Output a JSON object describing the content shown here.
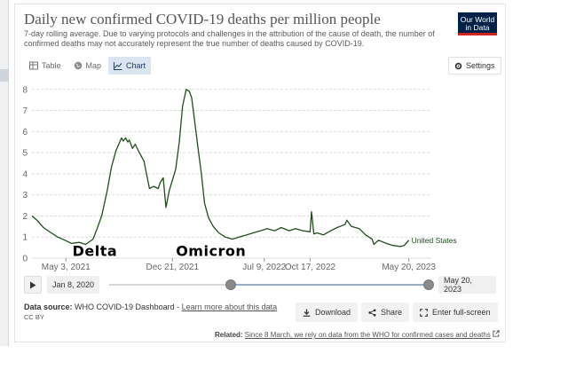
{
  "title": "Daily new confirmed COVID-19 deaths per million people",
  "subtitle": "7-day rolling average. Due to varying protocols and challenges in the attribution of the cause of death, the number of confirmed deaths may not accurately represent the true number of deaths caused by COVID-19.",
  "logo": {
    "line1": "Our World",
    "line2": "in Data"
  },
  "tabs": [
    {
      "label": "Table",
      "icon": "table-icon"
    },
    {
      "label": "Map",
      "icon": "globe-icon"
    },
    {
      "label": "Chart",
      "icon": "line-chart-icon",
      "active": true
    }
  ],
  "settings_label": "Settings",
  "chart_data": {
    "type": "line",
    "xlim": [
      "2021-02-18",
      "2023-07-08"
    ],
    "ylim": [
      0,
      8.2
    ],
    "yticks": [
      0,
      1,
      2,
      3,
      4,
      5,
      6,
      7,
      8
    ],
    "xticks": [
      {
        "date": "2021-05-03",
        "label": "May 3, 2021"
      },
      {
        "date": "2021-12-21",
        "label": "Dec 21, 2021"
      },
      {
        "date": "2022-07-09",
        "label": "Jul 9, 2022"
      },
      {
        "date": "2022-10-17",
        "label": "Oct 17, 2022"
      },
      {
        "date": "2023-05-20",
        "label": "May 20, 2023"
      }
    ],
    "grid": true,
    "annotations": [
      {
        "text": "Delta",
        "date": "2021-07-05",
        "y": 0.1
      },
      {
        "text": "Omicron",
        "date": "2022-03-15",
        "y": 0.1
      }
    ],
    "series": [
      {
        "name": "United States",
        "color": "#1f4e1a",
        "x": [
          "2021-02-18",
          "2021-03-01",
          "2021-03-15",
          "2021-04-01",
          "2021-04-15",
          "2021-05-01",
          "2021-05-15",
          "2021-06-01",
          "2021-06-15",
          "2021-07-01",
          "2021-07-10",
          "2021-07-20",
          "2021-08-01",
          "2021-08-10",
          "2021-08-20",
          "2021-09-01",
          "2021-09-05",
          "2021-09-10",
          "2021-09-15",
          "2021-09-18",
          "2021-09-25",
          "2021-10-01",
          "2021-10-10",
          "2021-10-20",
          "2021-11-01",
          "2021-11-10",
          "2021-11-20",
          "2021-11-25",
          "2021-12-01",
          "2021-12-07",
          "2021-12-14",
          "2021-12-21",
          "2021-12-28",
          "2022-01-05",
          "2022-01-12",
          "2022-01-20",
          "2022-01-27",
          "2022-02-01",
          "2022-02-08",
          "2022-02-15",
          "2022-02-22",
          "2022-03-01",
          "2022-03-10",
          "2022-03-20",
          "2022-04-01",
          "2022-04-15",
          "2022-05-01",
          "2022-05-15",
          "2022-06-01",
          "2022-06-15",
          "2022-07-01",
          "2022-07-15",
          "2022-08-01",
          "2022-08-15",
          "2022-09-01",
          "2022-09-15",
          "2022-10-01",
          "2022-10-17",
          "2022-10-20",
          "2022-10-25",
          "2022-11-01",
          "2022-11-15",
          "2022-12-01",
          "2022-12-15",
          "2023-01-01",
          "2023-01-05",
          "2023-01-15",
          "2023-02-01",
          "2023-02-15",
          "2023-03-01",
          "2023-03-05",
          "2023-03-15",
          "2023-04-01",
          "2023-04-15",
          "2023-05-01",
          "2023-05-10",
          "2023-05-20"
        ],
        "values": [
          2.0,
          1.8,
          1.45,
          1.2,
          1.0,
          0.85,
          0.7,
          0.75,
          0.65,
          0.9,
          1.4,
          2.0,
          3.2,
          4.3,
          5.1,
          5.7,
          5.55,
          5.7,
          5.5,
          5.6,
          5.2,
          5.4,
          5.0,
          4.6,
          3.3,
          3.4,
          3.3,
          3.6,
          3.8,
          2.4,
          3.2,
          3.7,
          4.2,
          5.5,
          7.2,
          8.0,
          7.9,
          7.6,
          6.4,
          5.2,
          4.0,
          2.6,
          1.9,
          1.5,
          1.2,
          1.0,
          0.9,
          1.0,
          1.1,
          1.2,
          1.3,
          1.4,
          1.3,
          1.45,
          1.3,
          1.4,
          1.3,
          1.25,
          2.2,
          1.15,
          1.2,
          1.1,
          1.3,
          1.45,
          1.6,
          1.8,
          1.5,
          1.4,
          1.1,
          0.9,
          0.65,
          0.85,
          0.7,
          0.6,
          0.55,
          0.6,
          0.85
        ]
      }
    ]
  },
  "timeline": {
    "start_label": "Jan 8, 2020",
    "end_label": "May 20, 2023",
    "start_fraction": 0.38,
    "end_fraction": 1.0
  },
  "source": {
    "prefix": "Data source:",
    "name": "WHO COVID-19 Dashboard",
    "separator": " - ",
    "link": "Learn more about this data",
    "license": "CC BY"
  },
  "actions": {
    "download": "Download",
    "share": "Share",
    "fullscreen": "Enter full-screen"
  },
  "related": {
    "prefix": "Related:",
    "link": "Since 8 March, we rely on data from the WHO for confirmed cases and deaths"
  }
}
